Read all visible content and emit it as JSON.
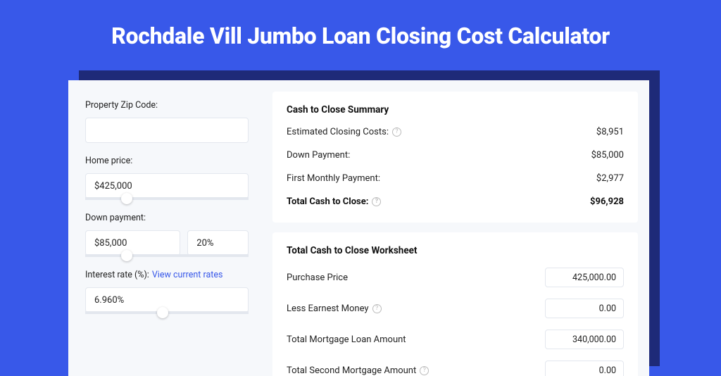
{
  "colors": {
    "page_bg": "#3858E9",
    "panel_bg": "#F6F8FB",
    "shadow": "#1E2A78",
    "card_bg": "#FFFFFF",
    "border": "#E3E7EE",
    "text": "#222222",
    "link": "#3858E9",
    "muted_icon": "#BBBBBB"
  },
  "header": {
    "title": "Rochdale Vill Jumbo Loan Closing Cost Calculator"
  },
  "form": {
    "zip": {
      "label": "Property Zip Code:",
      "value": ""
    },
    "home_price": {
      "label": "Home price:",
      "value": "$425,000",
      "slider_pct": 22
    },
    "down_payment": {
      "label": "Down payment:",
      "value": "$85,000",
      "pct": "20%",
      "slider_pct": 22
    },
    "interest_rate": {
      "label": "Interest rate (%):",
      "link_text": "View current rates",
      "value": "6.960%",
      "slider_pct": 44
    }
  },
  "summary": {
    "title": "Cash to Close Summary",
    "rows": [
      {
        "label": "Estimated Closing Costs:",
        "help": true,
        "value": "$8,951",
        "bold": false
      },
      {
        "label": "Down Payment:",
        "help": false,
        "value": "$85,000",
        "bold": false
      },
      {
        "label": "First Monthly Payment:",
        "help": false,
        "value": "$2,977",
        "bold": false
      },
      {
        "label": "Total Cash to Close:",
        "help": true,
        "value": "$96,928",
        "bold": true
      }
    ]
  },
  "worksheet": {
    "title": "Total Cash to Close Worksheet",
    "rows": [
      {
        "label": "Purchase Price",
        "help": false,
        "value": "425,000.00"
      },
      {
        "label": "Less Earnest Money",
        "help": true,
        "value": "0.00"
      },
      {
        "label": "Total Mortgage Loan Amount",
        "help": false,
        "value": "340,000.00"
      },
      {
        "label": "Total Second Mortgage Amount",
        "help": true,
        "value": "0.00"
      }
    ]
  }
}
